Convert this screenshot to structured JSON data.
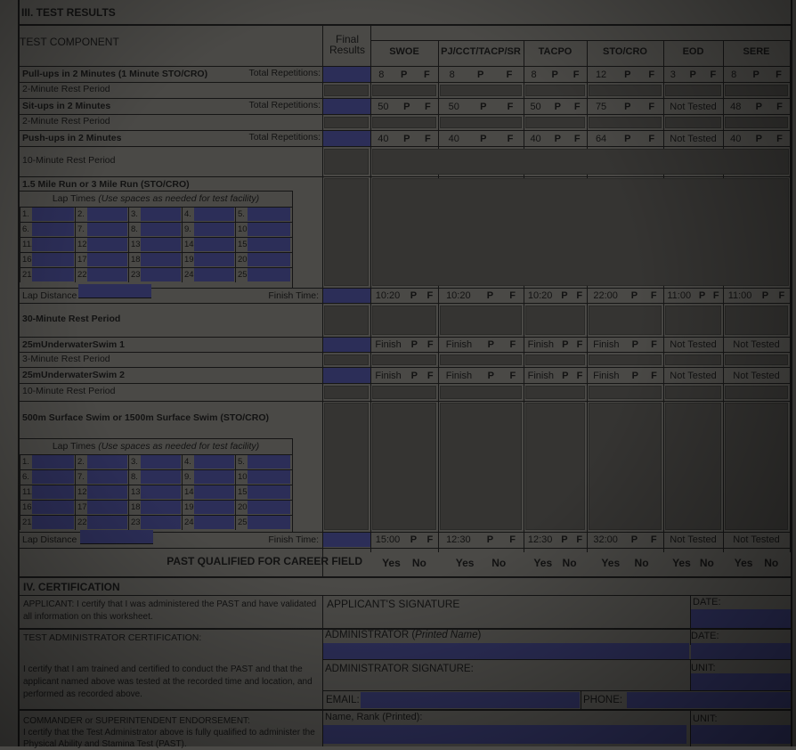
{
  "section3_title": "III. TEST RESULTS",
  "header": {
    "component": "TEST COMPONENT",
    "final_results": "Final Results",
    "columns": [
      "SWOE",
      "PJ/CCT/TACP/SR",
      "TACPO",
      "STO/CRO",
      "EOD",
      "SERE"
    ]
  },
  "pass_label": "P",
  "fail_label": "F",
  "total_reps_label": "Total Repetitions:",
  "rows": {
    "pullups": {
      "label": "Pull-ups in 2 Minutes (1 Minute STO/CRO)",
      "values": [
        "8",
        "8",
        "8",
        "12",
        "3",
        "8"
      ]
    },
    "rest1": {
      "label": "2-Minute Rest Period"
    },
    "situps": {
      "label": "Sit-ups in 2 Minutes",
      "values": [
        "50",
        "50",
        "50",
        "75",
        "Not Tested",
        "48"
      ]
    },
    "rest2": {
      "label": "2-Minute Rest Period"
    },
    "pushups": {
      "label": "Push-ups in 2 Minutes",
      "values": [
        "40",
        "40",
        "40",
        "64",
        "Not Tested",
        "40"
      ]
    },
    "rest3": {
      "label": "10-Minute Rest Period"
    },
    "run": {
      "label": "1.5 Mile Run or 3 Mile Run (STO/CRO)",
      "values": [
        "10:20",
        "10:20",
        "10:20",
        "22:00",
        "11:00",
        "11:00"
      ]
    },
    "rest4": {
      "label": "30-Minute Rest Period"
    },
    "swim1": {
      "label": "25mUnderwaterSwim 1",
      "values": [
        "Finish",
        "Finish",
        "Finish",
        "Finish",
        "Not Tested",
        "Not Tested"
      ]
    },
    "rest5": {
      "label": "3-Minute Rest Period"
    },
    "swim2": {
      "label": "25mUnderwaterSwim 2",
      "values": [
        "Finish",
        "Finish",
        "Finish",
        "Finish",
        "Not Tested",
        "Not Tested"
      ]
    },
    "rest6": {
      "label": "10-Minute Rest Period"
    },
    "swim500": {
      "label": "500m Surface Swim or 1500m Surface Swim (STO/CRO)",
      "values": [
        "15:00",
        "12:30",
        "12:30",
        "32:00",
        "Not Tested",
        "Not Tested"
      ]
    }
  },
  "lap_times_label": "Lap Times",
  "lap_times_note": "(Use spaces as needed for test facility)",
  "lap_numbers": [
    "1.",
    "2.",
    "3.",
    "4.",
    "5.",
    "6.",
    "7.",
    "8.",
    "9.",
    "10.",
    "11.",
    "12.",
    "13.",
    "14.",
    "15.",
    "16.",
    "17.",
    "18.",
    "19.",
    "20.",
    "21.",
    "22.",
    "23.",
    "24.",
    "25."
  ],
  "lap_distance_label": "Lap Distance",
  "finish_time_label": "Finish Time:",
  "qualified": {
    "label": "PAST QUALIFIED FOR CAREER FIELD",
    "yes": "Yes",
    "no": "No"
  },
  "certification": {
    "title": "IV. CERTIFICATION",
    "applicant_text": "APPLICANT: I certify that I was administered the PAST and have validated all information on this worksheet.",
    "applicant_signature": "APPLICANT'S SIGNATURE",
    "date_label": "DATE:",
    "admin_cert_label": "TEST ADMINISTRATOR CERTIFICATION:",
    "admin_name_label": "ADMINISTRATOR (",
    "admin_name_italic": "Printed Name",
    "admin_name_close": ")",
    "admin_text": "I certify that I am trained and certified to conduct the PAST and that the applicant named above was tested at the recorded time and location, and performed as recorded above.",
    "admin_signature": "ADMINISTRATOR SIGNATURE:",
    "unit_label": "UNIT:",
    "email_label": "EMAIL:",
    "phone_label": "PHONE:",
    "commander_label": "COMMANDER or SUPERINTENDENT ENDORSEMENT:",
    "commander_text": "I certify that the Test Administrator above is fully qualified to administer the Physical Ability and Stamina Test (PAST).",
    "name_rank_label": "Name, Rank (Printed):"
  },
  "colors": {
    "field": "#2c2e58",
    "background": "#4a4946"
  }
}
